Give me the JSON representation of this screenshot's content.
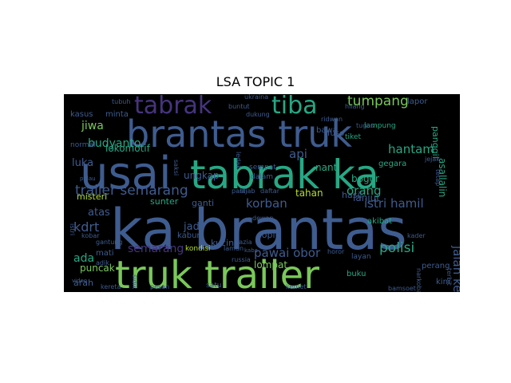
{
  "chart_data": {
    "type": "wordcloud",
    "title": "LSA TOPIC 1",
    "background": "#000000",
    "words": [
      {
        "text": "ka brantas",
        "color": "#3e5c8f"
      },
      {
        "text": "truk trailer",
        "color": "#7ac85a"
      },
      {
        "text": "usai",
        "color": "#3e5c8f"
      },
      {
        "text": "tabrak ka",
        "color": "#26a884"
      },
      {
        "text": "brantas truk",
        "color": "#3e5c8f"
      },
      {
        "text": "tabrak",
        "color": "#46347e"
      },
      {
        "text": "tiba",
        "color": "#26a884"
      },
      {
        "text": "tumpang",
        "color": "#7ac85a"
      },
      {
        "text": "trailer semarang",
        "color": "#3e5c8f"
      },
      {
        "text": "korban",
        "color": "#3e5c8f"
      },
      {
        "text": "pawai obor",
        "color": "#3e5c8f"
      },
      {
        "text": "polisi",
        "color": "#26a884"
      },
      {
        "text": "istri hamil",
        "color": "#3e5c8f"
      },
      {
        "text": "jalan kereta",
        "color": "#3e5c8f"
      },
      {
        "text": "semarang",
        "color": "#46347e"
      },
      {
        "text": "hantam",
        "color": "#26a884"
      },
      {
        "text": "orang",
        "color": "#26a884"
      },
      {
        "text": "kdrt",
        "color": "#3e5c8f"
      },
      {
        "text": "ada",
        "color": "#26a884"
      },
      {
        "text": "api",
        "color": "#3e5c8f"
      },
      {
        "text": "jiwa",
        "color": "#7ac85a"
      },
      {
        "text": "budyanto",
        "color": "#26a884"
      },
      {
        "text": "luka",
        "color": "#3e5c8f"
      },
      {
        "text": "lokomotif",
        "color": "#26a884"
      },
      {
        "text": "ungkap",
        "color": "#3e5c8f"
      },
      {
        "text": "atas",
        "color": "#3e5c8f"
      },
      {
        "text": "jadi",
        "color": "#3e5c8f"
      },
      {
        "text": "nanti",
        "color": "#26a884"
      },
      {
        "text": "bogor",
        "color": "#26a884"
      },
      {
        "text": "lanjut",
        "color": "#3e5c8f"
      },
      {
        "text": "tahan",
        "color": "#b5dd2b"
      },
      {
        "text": "hasil",
        "color": "#3e5c8f"
      },
      {
        "text": "puncak",
        "color": "#7ac85a"
      },
      {
        "text": "asallalin",
        "color": "#26a884"
      },
      {
        "text": "misteri",
        "color": "#b5dd2b"
      },
      {
        "text": "sunter",
        "color": "#26a884"
      },
      {
        "text": "ganti",
        "color": "#3e5c8f"
      },
      {
        "text": "kabur",
        "color": "#3e5c8f"
      },
      {
        "text": "kucing",
        "color": "#3e5c8f"
      },
      {
        "text": "lompat",
        "color": "#7ac85a"
      },
      {
        "text": "sopir",
        "color": "#3e5c8f"
      },
      {
        "text": "mati",
        "color": "#3e5c8f"
      },
      {
        "text": "arah",
        "color": "#3e5c8f"
      },
      {
        "text": "panggil",
        "color": "#26a884"
      },
      {
        "text": "kasus",
        "color": "#3e5c8f"
      },
      {
        "text": "minta",
        "color": "#3e5c8f"
      },
      {
        "text": "normal",
        "color": "#3e5c8f"
      },
      {
        "text": "fuso",
        "color": "#3e5c8f"
      },
      {
        "text": "bawa",
        "color": "#3e5c8f"
      },
      {
        "text": "tiket",
        "color": "#26a884"
      },
      {
        "text": "lampung",
        "color": "#26a884"
      },
      {
        "text": "gegara",
        "color": "#26a884"
      },
      {
        "text": "lapor",
        "color": "#3e5c8f"
      },
      {
        "text": "perang",
        "color": "#3e5c8f"
      },
      {
        "text": "kini",
        "color": "#3e5c8f"
      },
      {
        "text": "buku",
        "color": "#26a884"
      },
      {
        "text": "akibat",
        "color": "#26a884"
      },
      {
        "text": "layan",
        "color": "#3e5c8f"
      },
      {
        "text": "dalam",
        "color": "#3e5c8f"
      },
      {
        "text": "sempat",
        "color": "#3e5c8f"
      },
      {
        "text": "tubuh",
        "color": "#3e5c8f"
      },
      {
        "text": "pasti",
        "color": "#3e5c8f"
      },
      {
        "text": "hijab",
        "color": "#3e5c8f"
      },
      {
        "text": "daftar",
        "color": "#3e5c8f"
      },
      {
        "text": "russia",
        "color": "#3e5c8f"
      },
      {
        "text": "kaba",
        "color": "#3e5c8f"
      },
      {
        "text": "dewan",
        "color": "#3e5c8f"
      },
      {
        "text": "terbit",
        "color": "#3e5c8f"
      },
      {
        "text": "satu",
        "color": "#3e5c8f"
      },
      {
        "text": "kereta",
        "color": "#3e5c8f"
      },
      {
        "text": "pesan",
        "color": "#3e5c8f"
      },
      {
        "text": "kernet",
        "color": "#3e5c8f"
      },
      {
        "text": "bamsoet",
        "color": "#3e5c8f"
      },
      {
        "text": "kondisi",
        "color": "#b5dd2b"
      },
      {
        "text": "ukraina",
        "color": "#3e5c8f"
      },
      {
        "text": "buntut",
        "color": "#3e5c8f"
      },
      {
        "text": "dukung",
        "color": "#3e5c8f"
      },
      {
        "text": "saksi",
        "color": "#3e5c8f"
      },
      {
        "text": "ledak",
        "color": "#3e5c8f"
      },
      {
        "text": "ridwan",
        "color": "#3e5c8f"
      },
      {
        "text": "horor",
        "color": "#3e5c8f"
      },
      {
        "text": "kader",
        "color": "#3e5c8f"
      },
      {
        "text": "narkoba",
        "color": "#3e5c8f"
      },
      {
        "text": "gantung",
        "color": "#3e5c8f"
      },
      {
        "text": "kobar",
        "color": "#3e5c8f"
      },
      {
        "text": "adik",
        "color": "#3e5c8f"
      },
      {
        "text": "video",
        "color": "#3e5c8f"
      },
      {
        "text": "istri",
        "color": "#3e5c8f"
      },
      {
        "text": "razia",
        "color": "#3e5c8f"
      },
      {
        "text": "sidik",
        "color": "#3e5c8f"
      },
      {
        "text": "tugas",
        "color": "#3e5c8f"
      },
      {
        "text": "hilang",
        "color": "#3e5c8f"
      },
      {
        "text": "jejak",
        "color": "#3e5c8f"
      },
      {
        "text": "tetap",
        "color": "#3e5c8f"
      },
      {
        "text": "pulau",
        "color": "#3e5c8f"
      },
      {
        "text": "lamun",
        "color": "#3e5c8f"
      }
    ]
  }
}
